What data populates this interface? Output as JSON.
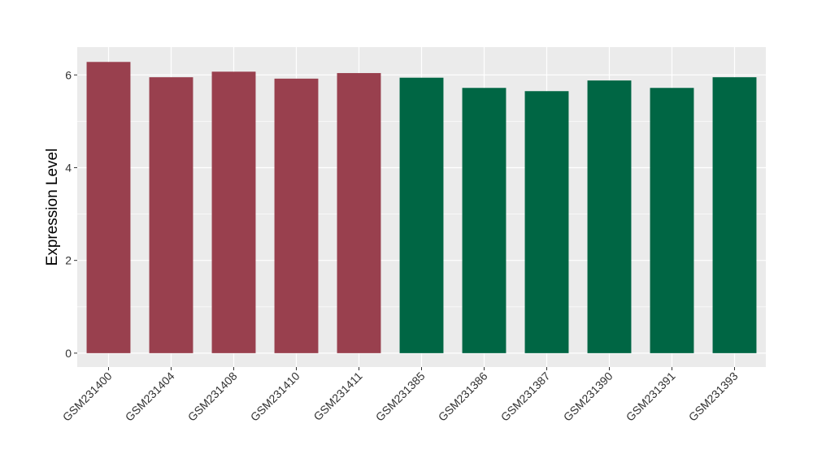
{
  "chart_data": {
    "type": "bar",
    "title": "",
    "xlabel": "",
    "ylabel": "Expression Level",
    "ylim": [
      -0.3,
      6.6
    ],
    "yticks": [
      0,
      2,
      4,
      6
    ],
    "grid": true,
    "legend": "none",
    "categories": [
      "GSM231400",
      "GSM231404",
      "GSM231408",
      "GSM231410",
      "GSM231411",
      "GSM231385",
      "GSM231386",
      "GSM231387",
      "GSM231390",
      "GSM231391",
      "GSM231393"
    ],
    "values": [
      6.28,
      5.95,
      6.07,
      5.92,
      6.04,
      5.94,
      5.72,
      5.65,
      5.88,
      5.72,
      5.95
    ],
    "bar_colors": [
      "#99404E",
      "#99404E",
      "#99404E",
      "#99404E",
      "#99404E",
      "#006644",
      "#006644",
      "#006644",
      "#006644",
      "#006644",
      "#006644"
    ],
    "panel_background": "#EBEBEB",
    "grid_color": "#FFFFFF"
  }
}
